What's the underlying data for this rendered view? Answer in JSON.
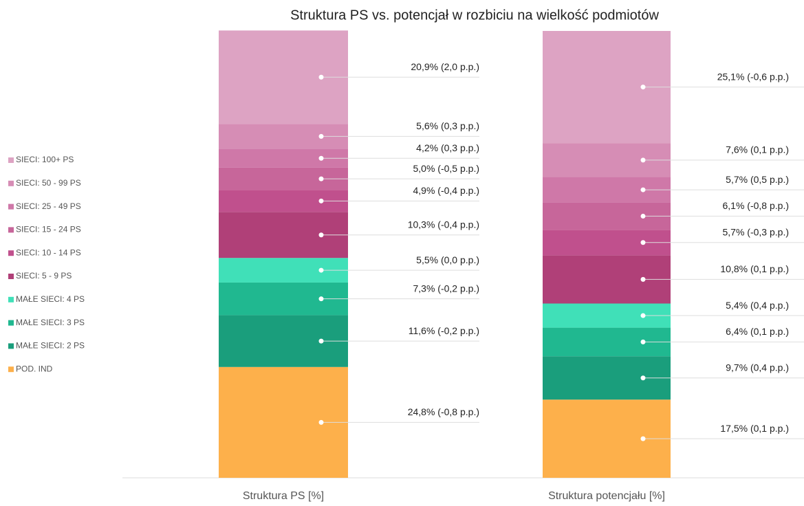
{
  "chart_data": {
    "type": "stacked_bar",
    "title": "Struktura PS vs. potencjał w rozbiciu na wielkość podmiotów",
    "categories": [
      "Struktura PS [%]",
      "Struktura potencjału [%]"
    ],
    "ylim": [
      0,
      100
    ],
    "series": [
      {
        "name": "POD. IND",
        "color": "#fdb04b",
        "values": [
          24.8,
          17.5
        ],
        "value_labels": [
          "24,8% (-0,8 p.p.)",
          "17,5% (0,1 p.p.)"
        ]
      },
      {
        "name": "MAŁE SIECI: 2 PS",
        "color": "#1a9e7c",
        "values": [
          11.6,
          9.7
        ],
        "value_labels": [
          "11,6% (-0,2 p.p.)",
          "9,7% (0,4 p.p.)"
        ]
      },
      {
        "name": "MAŁE SIECI: 3 PS",
        "color": "#20b890",
        "values": [
          7.3,
          6.4
        ],
        "value_labels": [
          "7,3% (-0,2 p.p.)",
          "6,4% (0,1 p.p.)"
        ]
      },
      {
        "name": "MAŁE SIECI: 4 PS",
        "color": "#40e0b8",
        "values": [
          5.5,
          5.4
        ],
        "value_labels": [
          "5,5% (0,0 p.p.)",
          "5,4% (0,4 p.p.)"
        ]
      },
      {
        "name": "SIECI: 5 - 9 PS",
        "color": "#b04078",
        "values": [
          10.3,
          10.8
        ],
        "value_labels": [
          "10,3% (-0,4 p.p.)",
          "10,8% (0,1 p.p.)"
        ]
      },
      {
        "name": "SIECI: 10 - 14 PS",
        "color": "#c0508d",
        "values": [
          4.9,
          5.7
        ],
        "value_labels": [
          "4,9% (-0,4 p.p.)",
          "5,7% (-0,3 p.p.)"
        ]
      },
      {
        "name": "SIECI: 15 - 24 PS",
        "color": "#c7669a",
        "values": [
          5.0,
          6.1
        ],
        "value_labels": [
          "5,0% (-0,5 p.p.)",
          "6,1% (-0,8 p.p.)"
        ]
      },
      {
        "name": "SIECI: 25 - 49 PS",
        "color": "#cf78a8",
        "values": [
          4.2,
          5.7
        ],
        "value_labels": [
          "4,2% (0,3 p.p.)",
          "5,7% (0,5 p.p.)"
        ]
      },
      {
        "name": "SIECI: 50 - 99 PS",
        "color": "#d68db5",
        "values": [
          5.6,
          7.6
        ],
        "value_labels": [
          "5,6% (0,3 p.p.)",
          "7,6% (0,1 p.p.)"
        ]
      },
      {
        "name": "SIECI: 100+  PS",
        "color": "#dda3c3",
        "values": [
          20.9,
          25.1
        ],
        "value_labels": [
          "20,9% (2,0 p.p.)",
          "25,1% (-0,6 p.p.)"
        ]
      }
    ]
  }
}
